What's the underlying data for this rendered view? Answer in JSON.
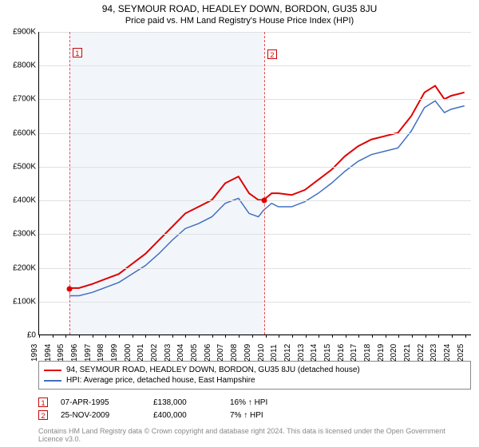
{
  "title": "94, SEYMOUR ROAD, HEADLEY DOWN, BORDON, GU35 8JU",
  "subtitle": "Price paid vs. HM Land Registry's House Price Index (HPI)",
  "chart": {
    "type": "line",
    "xlim": [
      1993,
      2025.5
    ],
    "ylim": [
      0,
      900000
    ],
    "ytick_step": 100000,
    "ytick_labels": [
      "£0",
      "£100K",
      "£200K",
      "£300K",
      "£400K",
      "£500K",
      "£600K",
      "£700K",
      "£800K",
      "£900K"
    ],
    "xticks": [
      1993,
      1994,
      1995,
      1996,
      1997,
      1998,
      1999,
      2000,
      2001,
      2002,
      2003,
      2004,
      2005,
      2006,
      2007,
      2008,
      2009,
      2010,
      2011,
      2012,
      2013,
      2014,
      2015,
      2016,
      2017,
      2018,
      2019,
      2020,
      2021,
      2022,
      2023,
      2024,
      2025
    ],
    "grid_color": "#e0e0e0",
    "background_color": "#ffffff",
    "shade_color": "#f2f6fb",
    "shade_range": [
      1995.27,
      2009.9
    ],
    "vline_color": "#e05050",
    "vlines": [
      1995.27,
      2009.9
    ],
    "series": [
      {
        "name": "property",
        "color": "#e00000",
        "width": 2,
        "label": "94, SEYMOUR ROAD, HEADLEY DOWN, BORDON, GU35 8JU (detached house)",
        "data": [
          [
            1995.27,
            138000
          ],
          [
            1996,
            138000
          ],
          [
            1997,
            150000
          ],
          [
            1998,
            165000
          ],
          [
            1999,
            180000
          ],
          [
            2000,
            210000
          ],
          [
            2001,
            240000
          ],
          [
            2002,
            280000
          ],
          [
            2003,
            320000
          ],
          [
            2004,
            360000
          ],
          [
            2005,
            380000
          ],
          [
            2006,
            400000
          ],
          [
            2007,
            450000
          ],
          [
            2008,
            470000
          ],
          [
            2008.8,
            420000
          ],
          [
            2009.5,
            400000
          ],
          [
            2009.9,
            400000
          ],
          [
            2010.5,
            420000
          ],
          [
            2011,
            420000
          ],
          [
            2012,
            415000
          ],
          [
            2013,
            430000
          ],
          [
            2014,
            460000
          ],
          [
            2015,
            490000
          ],
          [
            2016,
            530000
          ],
          [
            2017,
            560000
          ],
          [
            2018,
            580000
          ],
          [
            2019,
            590000
          ],
          [
            2020,
            600000
          ],
          [
            2021,
            650000
          ],
          [
            2022,
            720000
          ],
          [
            2022.8,
            740000
          ],
          [
            2023.5,
            700000
          ],
          [
            2024,
            710000
          ],
          [
            2025,
            720000
          ]
        ]
      },
      {
        "name": "hpi",
        "color": "#4070c0",
        "width": 1.5,
        "label": "HPI: Average price, detached house, East Hampshire",
        "data": [
          [
            1995.27,
            115000
          ],
          [
            1996,
            115000
          ],
          [
            1997,
            125000
          ],
          [
            1998,
            140000
          ],
          [
            1999,
            155000
          ],
          [
            2000,
            180000
          ],
          [
            2001,
            205000
          ],
          [
            2002,
            240000
          ],
          [
            2003,
            280000
          ],
          [
            2004,
            315000
          ],
          [
            2005,
            330000
          ],
          [
            2006,
            350000
          ],
          [
            2007,
            390000
          ],
          [
            2008,
            405000
          ],
          [
            2008.8,
            360000
          ],
          [
            2009.5,
            350000
          ],
          [
            2009.9,
            370000
          ],
          [
            2010.5,
            390000
          ],
          [
            2011,
            380000
          ],
          [
            2012,
            380000
          ],
          [
            2013,
            395000
          ],
          [
            2014,
            420000
          ],
          [
            2015,
            450000
          ],
          [
            2016,
            485000
          ],
          [
            2017,
            515000
          ],
          [
            2018,
            535000
          ],
          [
            2019,
            545000
          ],
          [
            2020,
            555000
          ],
          [
            2021,
            605000
          ],
          [
            2022,
            675000
          ],
          [
            2022.8,
            695000
          ],
          [
            2023.5,
            660000
          ],
          [
            2024,
            670000
          ],
          [
            2025,
            680000
          ]
        ]
      }
    ],
    "markers": [
      {
        "label": "1",
        "x": 1995.27,
        "y": 138000
      },
      {
        "label": "2",
        "x": 2009.9,
        "y": 400000
      }
    ]
  },
  "events": [
    {
      "label": "1",
      "date": "07-APR-1995",
      "price": "£138,000",
      "delta": "16% ↑ HPI"
    },
    {
      "label": "2",
      "date": "25-NOV-2009",
      "price": "£400,000",
      "delta": "7% ↑ HPI"
    }
  ],
  "footer": "Contains HM Land Registry data © Crown copyright and database right 2024. This data is licensed under the Open Government Licence v3.0."
}
